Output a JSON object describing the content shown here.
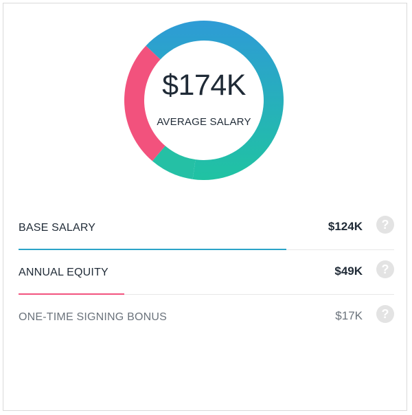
{
  "colors": {
    "base": "#2aa3c8",
    "equity": "#f2527d",
    "bonus": "#25c0a5",
    "gradient_top": "#2e9bd6",
    "gradient_bottom": "#20c3a2"
  },
  "chart_data": {
    "type": "pie",
    "donut": true,
    "center_value": "$174K",
    "center_label": "AVERAGE SALARY",
    "slices": [
      {
        "label": "BASE SALARY",
        "value": 124,
        "display": "$124K",
        "color": "#2aa3c8"
      },
      {
        "label": "ANNUAL EQUITY",
        "value": 49,
        "display": "$49K",
        "color": "#f2527d"
      },
      {
        "label": "ONE-TIME SIGNING BONUS",
        "value": 17,
        "display": "$17K",
        "color": "#25c0a5"
      }
    ]
  },
  "help_icon": "question-circle-icon"
}
